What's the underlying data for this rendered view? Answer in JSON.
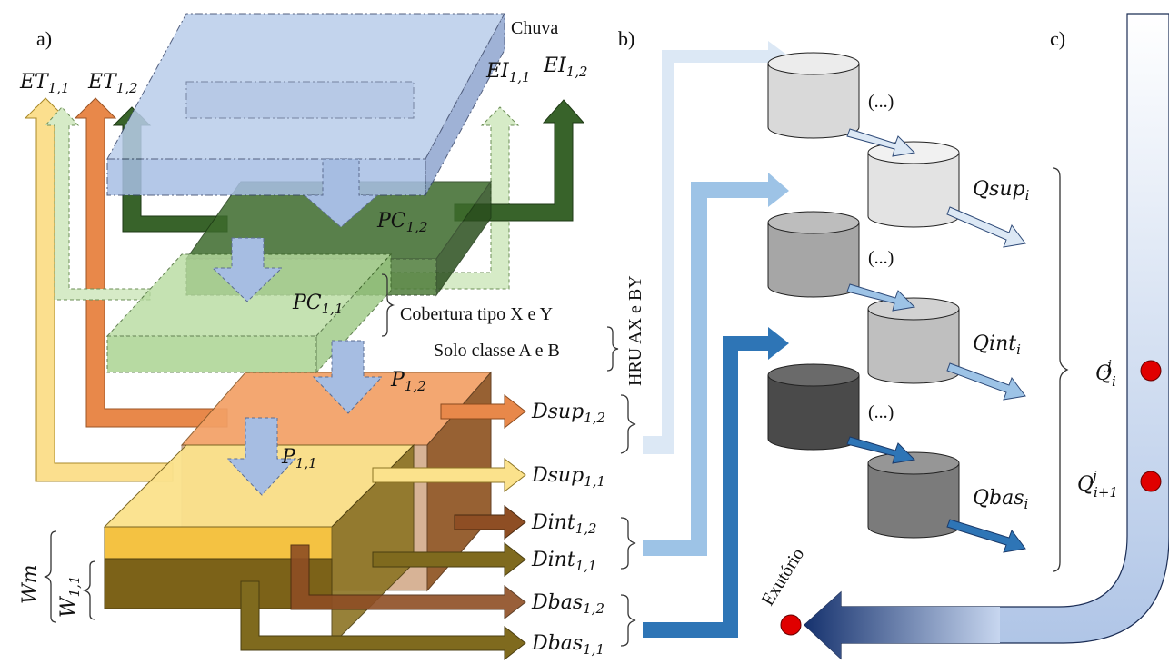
{
  "panels": {
    "a": "a)",
    "b": "b)",
    "c": "c)"
  },
  "rain": "Chuva",
  "et": [
    {
      "base": "ET",
      "sub": "1,1",
      "color": "#f7cd6d"
    },
    {
      "base": "ET",
      "sub": "1,2",
      "color": "#e8884a"
    }
  ],
  "ei": [
    {
      "base": "EI",
      "sub": "1,1",
      "color": "#c5e0b3"
    },
    {
      "base": "EI",
      "sub": "1,2",
      "color": "#38632a"
    }
  ],
  "pc": [
    {
      "base": "PC",
      "sub": "1,2"
    },
    {
      "base": "PC",
      "sub": "1,1"
    }
  ],
  "p": [
    {
      "base": "P",
      "sub": "1,2"
    },
    {
      "base": "P",
      "sub": "1,1"
    }
  ],
  "cover": "Cobertura tipo X e Y",
  "soil": "Solo classe A e B",
  "hru": "HRU AX e BY",
  "storage": {
    "wm": "Wm",
    "w_base": "W",
    "w_sub": "1,1"
  },
  "outflows": [
    {
      "base": "Dsup",
      "sub": "1,2",
      "color": "#e8884a"
    },
    {
      "base": "Dsup",
      "sub": "1,1",
      "color": "#fbe28c"
    },
    {
      "base": "Dint",
      "sub": "1,2",
      "color": "#8e4e24"
    },
    {
      "base": "Dint",
      "sub": "1,1",
      "color": "#7f6a1e"
    },
    {
      "base": "Dbas",
      "sub": "1,2",
      "color": "#8e4e24"
    },
    {
      "base": "Dbas",
      "sub": "1,1",
      "color": "#7f6a1e"
    }
  ],
  "reservoirs": {
    "ellipsis": "(...)",
    "flows": [
      {
        "base": "Qsup",
        "sub": "i",
        "color": "#dce8f5"
      },
      {
        "base": "Qint",
        "sub": "i",
        "color": "#9dc3e6"
      },
      {
        "base": "Qbas",
        "sub": "i",
        "color": "#2e75b6"
      }
    ]
  },
  "channel": {
    "q1": {
      "base": "Q",
      "sub": "i",
      "sup": "j"
    },
    "q2": {
      "base": "Q",
      "sub": "i+1",
      "sup": "j"
    },
    "outlet": "Exutório",
    "point_color": "#e00000"
  }
}
